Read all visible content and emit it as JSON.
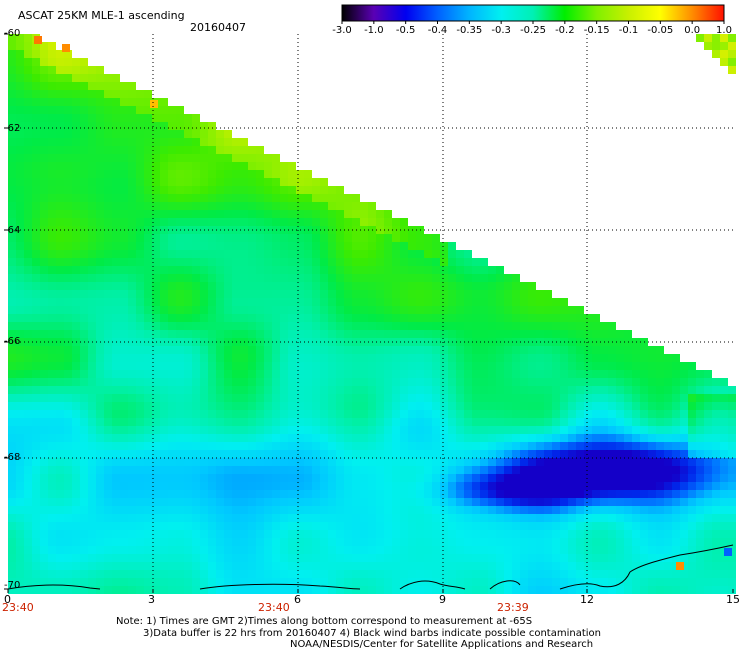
{
  "header": {
    "title": "ASCAT 25KM MLE-1 ascending",
    "date": "20160407"
  },
  "colorbar": {
    "labels": [
      "-3.0",
      "-1.0",
      "-0.5",
      "-0.4",
      "-0.35",
      "-0.3",
      "-0.25",
      "-0.2",
      "-0.15",
      "-0.1",
      "-0.05",
      "0.0",
      "1.0"
    ],
    "colors": [
      "#000000",
      "#5a00b4",
      "#0000f0",
      "#0060ff",
      "#00b4ff",
      "#00f0f0",
      "#00f0b4",
      "#00ee00",
      "#80f000",
      "#c8f000",
      "#ffff00",
      "#ff8c00",
      "#ff1000"
    ]
  },
  "y_axis_labels": [
    "-60",
    "-62",
    "-64",
    "-66",
    "-68",
    "-70"
  ],
  "x_axis_labels": [
    "0",
    "3",
    "6",
    "9",
    "12",
    "15"
  ],
  "time_labels": [
    "23:40",
    "23:40",
    "23:39"
  ],
  "footer": {
    "line1": "Note: 1) Times are GMT 2)Times along bottom correspond to measurement at -65S",
    "line2": "3)Data buffer is 22 hrs from 20160407 4) Black wind barbs indicate possible contamination",
    "line3": "NOAA/NESDIS/Center for Satellite Applications and Research"
  }
}
